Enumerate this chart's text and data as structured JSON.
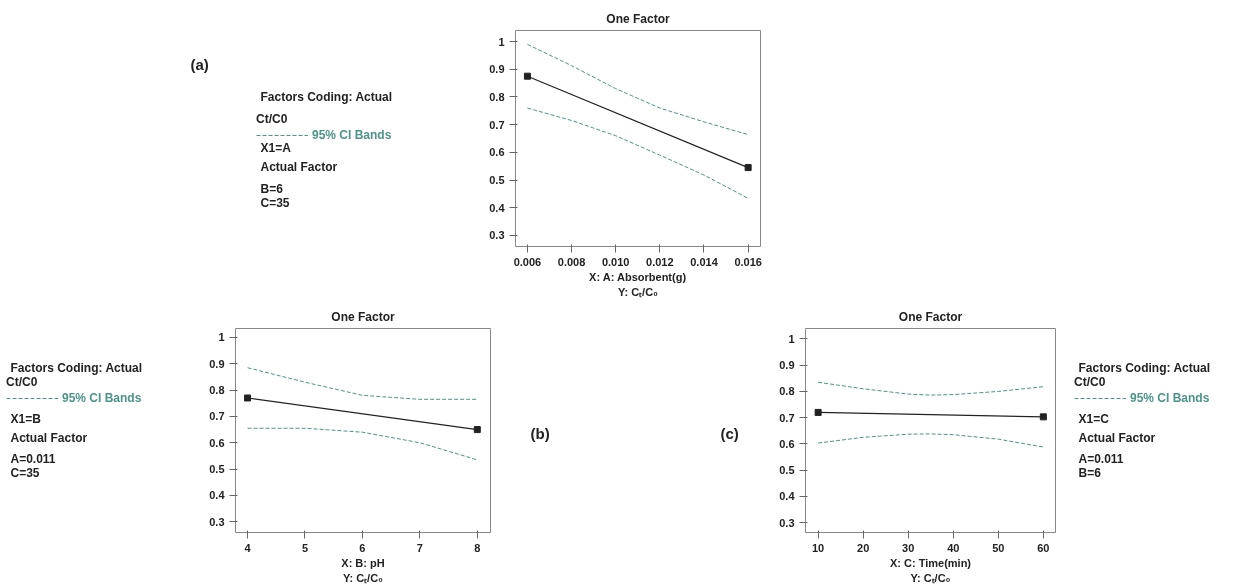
{
  "chart_data": [
    {
      "type": "line",
      "title": "One Factor",
      "xlabel": "X: A: Absorbent(g)",
      "xlim": [
        0.00546,
        0.01656
      ],
      "ylim": [
        0.26,
        1.04
      ],
      "xticks": [
        0.006,
        0.008,
        {
          "value": 0.01,
          "label": "0.010"
        },
        0.012,
        0.014,
        0.016
      ],
      "yticks": [
        0.3,
        0.4,
        0.5,
        0.6,
        0.7,
        0.8,
        0.9,
        1
      ],
      "grid": false,
      "legend": "left",
      "legend_title": "Ct/C0",
      "annotations": [
        "(a)",
        "Y: Cₜ/C₀",
        "Factors Coding: Actual",
        "X1=A",
        "Actual Factor",
        "B=6",
        "C=35"
      ],
      "series": [
        {
          "color": "#222222",
          "marker": "square",
          "x": [
            0.006,
            0.016
          ],
          "values": [
            0.875,
            0.545
          ]
        },
        {
          "name": "95% CI Bands",
          "color": "#4e9488",
          "line_style": "dashed",
          "marker": "none",
          "x": [
            0.006,
            0.008,
            0.01,
            0.012,
            0.014,
            0.016
          ],
          "values": [
            0.99,
            0.913,
            0.83,
            0.76,
            0.71,
            0.664
          ]
        },
        {
          "color": "#4e9488",
          "line_style": "dashed",
          "marker": "none",
          "x": [
            0.006,
            0.008,
            0.01,
            0.012,
            0.014,
            0.016
          ],
          "values": [
            0.76,
            0.715,
            0.66,
            0.59,
            0.518,
            0.434
          ]
        }
      ]
    },
    {
      "type": "line",
      "title": "One Factor",
      "xlabel": "X: B: pH",
      "xlim": [
        3.79,
        8.23
      ],
      "ylim": [
        0.259,
        1.034
      ],
      "xticks": [
        4,
        5,
        6,
        7,
        8
      ],
      "yticks": [
        0.3,
        0.4,
        0.5,
        0.6,
        0.7,
        0.8,
        0.9,
        1
      ],
      "grid": false,
      "legend": "left",
      "legend_title": "Ct/C0",
      "annotations": [
        "(b)",
        "Y: Cₜ/C₀",
        "Factors Coding: Actual",
        "X1=B",
        "Actual Factor",
        "A=0.011",
        "C=35"
      ],
      "series": [
        {
          "color": "#222222",
          "marker": "square",
          "x": [
            4,
            8
          ],
          "values": [
            0.77,
            0.65
          ]
        },
        {
          "name": "95% CI Bands",
          "color": "#4e9488",
          "line_style": "dashed",
          "marker": "none",
          "x": [
            4,
            5,
            6,
            7,
            8
          ],
          "values": [
            0.885,
            0.83,
            0.78,
            0.765,
            0.765
          ]
        },
        {
          "color": "#4e9488",
          "line_style": "dashed",
          "marker": "none",
          "x": [
            4,
            5,
            6,
            7,
            8
          ],
          "values": [
            0.655,
            0.655,
            0.64,
            0.6,
            0.535
          ]
        }
      ]
    },
    {
      "type": "line",
      "title": "One Factor",
      "xlabel": "X: C: Time(min)",
      "xlim": [
        7.2,
        62.7
      ],
      "ylim": [
        0.262,
        1.04
      ],
      "xticks": [
        10,
        20,
        30,
        40,
        50,
        60
      ],
      "yticks": [
        0.3,
        0.4,
        0.5,
        0.6,
        0.7,
        0.8,
        0.9,
        1
      ],
      "grid": false,
      "legend": "right",
      "legend_title": "Ct/C0",
      "annotations": [
        "(c)",
        "Y: Cₜ/C₀",
        "Factors Coding: Actual",
        "X1=C",
        "Actual Factor",
        "A=0.011",
        "B=6"
      ],
      "series": [
        {
          "color": "#222222",
          "marker": "square",
          "x": [
            10,
            60
          ],
          "values": [
            0.72,
            0.703
          ]
        },
        {
          "name": "95% CI Bands",
          "color": "#4e9488",
          "line_style": "dashed",
          "marker": "none",
          "x": [
            10,
            20,
            30,
            35,
            40,
            50,
            60
          ],
          "values": [
            0.835,
            0.81,
            0.79,
            0.786,
            0.788,
            0.8,
            0.818
          ]
        },
        {
          "color": "#4e9488",
          "line_style": "dashed",
          "marker": "none",
          "x": [
            10,
            20,
            30,
            35,
            40,
            50,
            60
          ],
          "values": [
            0.603,
            0.625,
            0.637,
            0.638,
            0.635,
            0.618,
            0.588
          ]
        }
      ]
    }
  ]
}
